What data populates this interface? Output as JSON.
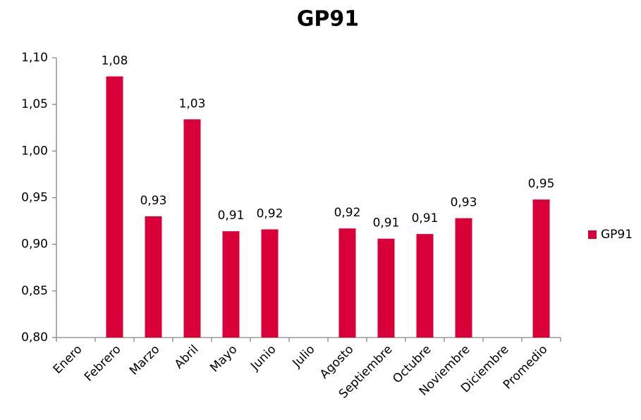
{
  "chart_data": {
    "type": "bar",
    "title": "GP91",
    "categories": [
      "Enero",
      "Febrero",
      "Marzo",
      "Abril",
      "Mayo",
      "Junio",
      "Julio",
      "Agosto",
      "Septiembre",
      "Octubre",
      "Noviembre",
      "Diciembre",
      "Promedio"
    ],
    "series": [
      {
        "name": "GP91",
        "color": "#d9003a",
        "values": [
          null,
          1.08,
          0.93,
          1.034,
          0.914,
          0.916,
          null,
          0.917,
          0.906,
          0.911,
          0.928,
          null,
          0.948
        ],
        "value_labels": [
          null,
          "1,08",
          "0,93",
          "1,03",
          "0,91",
          "0,92",
          null,
          "0,92",
          "0,91",
          "0,91",
          "0,93",
          null,
          "0,95"
        ]
      }
    ],
    "ylim": [
      0.8,
      1.1
    ],
    "yticks": [
      {
        "value": 0.8,
        "label": "0,80"
      },
      {
        "value": 0.85,
        "label": "0,85"
      },
      {
        "value": 0.9,
        "label": "0,90"
      },
      {
        "value": 0.95,
        "label": "0,95"
      },
      {
        "value": 1.0,
        "label": "1,00"
      },
      {
        "value": 1.05,
        "label": "1,05"
      },
      {
        "value": 1.1,
        "label": "1,10"
      }
    ],
    "grid": false,
    "legend": "right"
  }
}
